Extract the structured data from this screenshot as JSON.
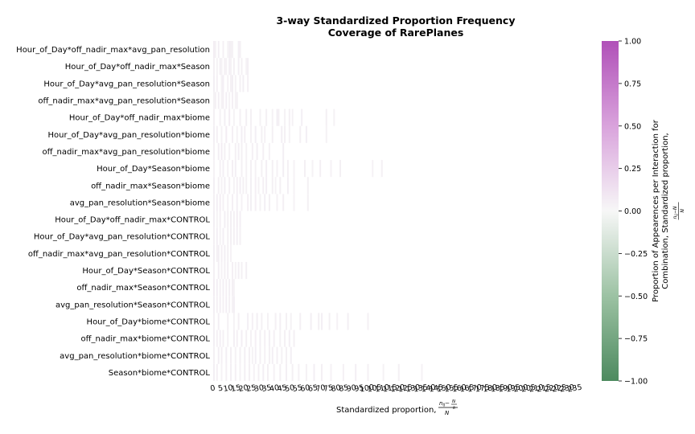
{
  "chart_data": {
    "type": "heatmap",
    "title": [
      "3-way Standardized Proportion Frequency",
      "Coverage of RarePlanes"
    ],
    "xlabel": "Standardized proportion,",
    "xlabel_formula": {
      "num_left": "n",
      "num_sub": "ij",
      "num_mid": "−",
      "frac_num": "N",
      "frac_den": "k",
      "den": "N"
    },
    "rows": [
      "Hour_of_Day*off_nadir_max*avg_pan_resolution",
      "Hour_of_Day*off_nadir_max*Season",
      "Hour_of_Day*avg_pan_resolution*Season",
      "off_nadir_max*avg_pan_resolution*Season",
      "Hour_of_Day*off_nadir_max*biome",
      "Hour_of_Day*avg_pan_resolution*biome",
      "off_nadir_max*avg_pan_resolution*biome",
      "Hour_of_Day*Season*biome",
      "off_nadir_max*Season*biome",
      "avg_pan_resolution*Season*biome",
      "Hour_of_Day*off_nadir_max*CONTROL",
      "Hour_of_Day*avg_pan_resolution*CONTROL",
      "off_nadir_max*avg_pan_resolution*CONTROL",
      "Hour_of_Day*Season*CONTROL",
      "off_nadir_max*Season*CONTROL",
      "avg_pan_resolution*Season*CONTROL",
      "Hour_of_Day*biome*CONTROL",
      "off_nadir_max*biome*CONTROL",
      "avg_pan_resolution*biome*CONTROL",
      "Season*biome*CONTROL"
    ],
    "x_tick_labels": [
      "0",
      "5",
      "10",
      "15",
      "20",
      "25",
      "30",
      "35",
      "40",
      "45",
      "50",
      "55",
      "60",
      "65",
      "70",
      "75",
      "80",
      "85",
      "90",
      "95",
      "100",
      "105",
      "110",
      "115",
      "120",
      "125",
      "130",
      "135",
      "140",
      "145",
      "150",
      "155",
      "160",
      "165",
      "170",
      "175",
      "180",
      "185",
      "190",
      "195",
      "200",
      "205",
      "210",
      "215",
      "220",
      "225",
      "230",
      "235"
    ],
    "x_range": [
      0,
      235
    ],
    "cells": [
      [
        [
          0,
          0.06
        ],
        [
          1,
          0.03
        ],
        [
          3,
          0.05
        ],
        [
          6,
          0.04
        ],
        [
          9,
          0.02
        ],
        [
          10,
          0.05
        ],
        [
          11,
          0.04
        ],
        [
          12,
          0.03
        ],
        [
          16,
          0.05
        ],
        [
          17,
          0.04
        ]
      ],
      [
        [
          0,
          0.04
        ],
        [
          2,
          0.03
        ],
        [
          4,
          0.05
        ],
        [
          5,
          0.03
        ],
        [
          7,
          0.04
        ],
        [
          8,
          0.03
        ],
        [
          10,
          0.05
        ],
        [
          11,
          0.03
        ],
        [
          13,
          0.04
        ],
        [
          16,
          0.05
        ],
        [
          18,
          0.04
        ],
        [
          21,
          0.03
        ],
        [
          22,
          0.05
        ]
      ],
      [
        [
          0,
          0.05
        ],
        [
          2,
          0.04
        ],
        [
          5,
          0.03
        ],
        [
          6,
          0.05
        ],
        [
          9,
          0.03
        ],
        [
          11,
          0.04
        ],
        [
          12,
          0.05
        ],
        [
          14,
          0.03
        ],
        [
          17,
          0.04
        ],
        [
          19,
          0.05
        ],
        [
          22,
          0.04
        ]
      ],
      [
        [
          0,
          0.03
        ],
        [
          1,
          0.04
        ],
        [
          3,
          0.05
        ],
        [
          5,
          0.03
        ],
        [
          6,
          0.04
        ],
        [
          8,
          0.05
        ],
        [
          10,
          0.03
        ],
        [
          12,
          0.04
        ],
        [
          14,
          0.03
        ],
        [
          15,
          0.04
        ]
      ],
      [
        [
          0,
          0.04
        ],
        [
          4,
          0.03
        ],
        [
          7,
          0.05
        ],
        [
          10,
          0.06
        ],
        [
          13,
          0.03
        ],
        [
          17,
          0.04
        ],
        [
          21,
          0.05
        ],
        [
          24,
          0.04
        ],
        [
          30,
          0.03
        ],
        [
          34,
          0.04
        ],
        [
          38,
          0.03
        ],
        [
          41,
          0.05
        ],
        [
          42,
          0.04
        ],
        [
          46,
          0.03
        ],
        [
          49,
          0.04
        ],
        [
          51,
          0.03
        ],
        [
          57,
          0.05
        ],
        [
          73,
          0.04
        ],
        [
          78,
          0.03
        ]
      ],
      [
        [
          0,
          0.05
        ],
        [
          2,
          0.04
        ],
        [
          5,
          0.03
        ],
        [
          8,
          0.06
        ],
        [
          12,
          0.04
        ],
        [
          15,
          0.03
        ],
        [
          18,
          0.05
        ],
        [
          20,
          0.04
        ],
        [
          24,
          0.03
        ],
        [
          27,
          0.05
        ],
        [
          31,
          0.04
        ],
        [
          33,
          0.03
        ],
        [
          38,
          0.04
        ],
        [
          44,
          0.05
        ],
        [
          46,
          0.04
        ],
        [
          49,
          0.03
        ],
        [
          56,
          0.04
        ],
        [
          60,
          0.05
        ],
        [
          73,
          0.03
        ]
      ],
      [
        [
          0,
          0.04
        ],
        [
          3,
          0.05
        ],
        [
          5,
          0.06
        ],
        [
          7,
          0.04
        ],
        [
          10,
          0.03
        ],
        [
          14,
          0.04
        ],
        [
          16,
          0.05
        ],
        [
          18,
          0.04
        ],
        [
          21,
          0.03
        ],
        [
          25,
          0.04
        ],
        [
          28,
          0.05
        ],
        [
          32,
          0.04
        ],
        [
          36,
          0.03
        ],
        [
          45,
          0.05
        ]
      ],
      [
        [
          0,
          0.03
        ],
        [
          4,
          0.04
        ],
        [
          6,
          0.05
        ],
        [
          9,
          0.03
        ],
        [
          12,
          0.04
        ],
        [
          14,
          0.05
        ],
        [
          18,
          0.04
        ],
        [
          21,
          0.03
        ],
        [
          24,
          0.04
        ],
        [
          27,
          0.03
        ],
        [
          31,
          0.04
        ],
        [
          34,
          0.05
        ],
        [
          38,
          0.04
        ],
        [
          41,
          0.03
        ],
        [
          45,
          0.05
        ],
        [
          48,
          0.04
        ],
        [
          52,
          0.03
        ],
        [
          59,
          0.04
        ],
        [
          64,
          0.03
        ],
        [
          69,
          0.04
        ],
        [
          76,
          0.03
        ],
        [
          82,
          0.04
        ],
        [
          103,
          0.03
        ],
        [
          109,
          0.04
        ]
      ],
      [
        [
          0,
          0.05
        ],
        [
          3,
          0.04
        ],
        [
          5,
          0.03
        ],
        [
          7,
          0.05
        ],
        [
          10,
          0.04
        ],
        [
          13,
          0.03
        ],
        [
          15,
          0.04
        ],
        [
          17,
          0.05
        ],
        [
          19,
          0.04
        ],
        [
          21,
          0.03
        ],
        [
          24,
          0.05
        ],
        [
          27,
          0.04
        ],
        [
          29,
          0.03
        ],
        [
          32,
          0.04
        ],
        [
          34,
          0.05
        ],
        [
          38,
          0.04
        ],
        [
          40,
          0.03
        ],
        [
          43,
          0.04
        ],
        [
          48,
          0.05
        ],
        [
          52,
          0.03
        ],
        [
          61,
          0.04
        ]
      ],
      [
        [
          0,
          0.04
        ],
        [
          2,
          0.05
        ],
        [
          4,
          0.06
        ],
        [
          6,
          0.04
        ],
        [
          9,
          0.03
        ],
        [
          12,
          0.04
        ],
        [
          15,
          0.05
        ],
        [
          18,
          0.03
        ],
        [
          22,
          0.04
        ],
        [
          24,
          0.05
        ],
        [
          27,
          0.04
        ],
        [
          30,
          0.03
        ],
        [
          33,
          0.05
        ],
        [
          36,
          0.04
        ],
        [
          41,
          0.03
        ],
        [
          45,
          0.04
        ],
        [
          52,
          0.03
        ],
        [
          61,
          0.04
        ]
      ],
      [
        [
          0,
          0.05
        ],
        [
          2,
          0.03
        ],
        [
          4,
          0.04
        ],
        [
          7,
          0.05
        ],
        [
          9,
          0.04
        ],
        [
          11,
          0.05
        ],
        [
          13,
          0.04
        ],
        [
          15,
          0.06
        ],
        [
          17,
          0.05
        ]
      ],
      [
        [
          0,
          0.04
        ],
        [
          2,
          0.05
        ],
        [
          4,
          0.03
        ],
        [
          6,
          0.05
        ],
        [
          9,
          0.04
        ],
        [
          11,
          0.05
        ],
        [
          13,
          0.04
        ],
        [
          15,
          0.05
        ],
        [
          17,
          0.04
        ]
      ],
      [
        [
          0,
          0.05
        ],
        [
          2,
          0.04
        ],
        [
          3,
          0.05
        ],
        [
          5,
          0.04
        ],
        [
          7,
          0.05
        ],
        [
          9,
          0.04
        ],
        [
          11,
          0.03
        ]
      ],
      [
        [
          0,
          0.04
        ],
        [
          3,
          0.05
        ],
        [
          5,
          0.03
        ],
        [
          7,
          0.04
        ],
        [
          9,
          0.05
        ],
        [
          12,
          0.04
        ],
        [
          14,
          0.03
        ],
        [
          16,
          0.05
        ],
        [
          18,
          0.04
        ],
        [
          21,
          0.05
        ]
      ],
      [
        [
          0,
          0.06
        ],
        [
          2,
          0.05
        ],
        [
          4,
          0.04
        ],
        [
          6,
          0.05
        ],
        [
          8,
          0.04
        ],
        [
          10,
          0.05
        ],
        [
          12,
          0.04
        ],
        [
          13,
          0.03
        ]
      ],
      [
        [
          0,
          0.05
        ],
        [
          2,
          0.04
        ],
        [
          4,
          0.05
        ],
        [
          6,
          0.04
        ],
        [
          8,
          0.05
        ],
        [
          10,
          0.04
        ],
        [
          12,
          0.03
        ],
        [
          13,
          0.05
        ]
      ],
      [
        [
          0,
          0.04
        ],
        [
          3,
          0.05
        ],
        [
          9,
          0.04
        ],
        [
          13,
          0.03
        ],
        [
          16,
          0.04
        ],
        [
          22,
          0.05
        ],
        [
          25,
          0.04
        ],
        [
          28,
          0.05
        ],
        [
          31,
          0.04
        ],
        [
          35,
          0.03
        ],
        [
          40,
          0.04
        ],
        [
          43,
          0.05
        ],
        [
          47,
          0.04
        ],
        [
          50,
          0.03
        ],
        [
          56,
          0.04
        ],
        [
          63,
          0.05
        ],
        [
          68,
          0.04
        ],
        [
          70,
          0.05
        ],
        [
          75,
          0.04
        ],
        [
          80,
          0.03
        ],
        [
          87,
          0.05
        ],
        [
          100,
          0.04
        ]
      ],
      [
        [
          0,
          0.05
        ],
        [
          2,
          0.04
        ],
        [
          4,
          0.05
        ],
        [
          6,
          0.04
        ],
        [
          9,
          0.03
        ],
        [
          13,
          0.05
        ],
        [
          15,
          0.04
        ],
        [
          18,
          0.05
        ],
        [
          21,
          0.04
        ],
        [
          24,
          0.03
        ],
        [
          27,
          0.04
        ],
        [
          30,
          0.05
        ],
        [
          33,
          0.04
        ],
        [
          36,
          0.05
        ],
        [
          39,
          0.04
        ],
        [
          43,
          0.03
        ],
        [
          46,
          0.04
        ],
        [
          49,
          0.05
        ],
        [
          52,
          0.04
        ]
      ],
      [
        [
          0,
          0.04
        ],
        [
          3,
          0.05
        ],
        [
          5,
          0.04
        ],
        [
          8,
          0.05
        ],
        [
          11,
          0.04
        ],
        [
          14,
          0.03
        ],
        [
          17,
          0.04
        ],
        [
          20,
          0.05
        ],
        [
          23,
          0.04
        ],
        [
          25,
          0.03
        ],
        [
          27,
          0.05
        ],
        [
          30,
          0.04
        ],
        [
          33,
          0.03
        ],
        [
          36,
          0.04
        ],
        [
          38,
          0.05
        ],
        [
          41,
          0.04
        ],
        [
          44,
          0.03
        ],
        [
          47,
          0.04
        ],
        [
          50,
          0.05
        ]
      ],
      [
        [
          0,
          0.05
        ],
        [
          2,
          0.04
        ],
        [
          5,
          0.03
        ],
        [
          8,
          0.04
        ],
        [
          11,
          0.05
        ],
        [
          14,
          0.04
        ],
        [
          17,
          0.03
        ],
        [
          20,
          0.05
        ],
        [
          23,
          0.04
        ],
        [
          26,
          0.03
        ],
        [
          29,
          0.04
        ],
        [
          32,
          0.05
        ],
        [
          35,
          0.04
        ],
        [
          39,
          0.03
        ],
        [
          43,
          0.04
        ],
        [
          47,
          0.05
        ],
        [
          51,
          0.04
        ],
        [
          55,
          0.03
        ],
        [
          60,
          0.04
        ],
        [
          65,
          0.05
        ],
        [
          70,
          0.04
        ],
        [
          76,
          0.03
        ],
        [
          84,
          0.04
        ],
        [
          92,
          0.05
        ],
        [
          100,
          0.04
        ],
        [
          110,
          0.03
        ],
        [
          120,
          0.04
        ],
        [
          135,
          0.03
        ]
      ]
    ],
    "colorbar": {
      "label_line1": "Proportion of Appearences per Interaction for",
      "label_line2": "Combination, Standardized proportion,",
      "ticks": [
        "1.00",
        "0.75",
        "0.50",
        "0.25",
        "0.00",
        "−0.25",
        "−0.50",
        "−0.75",
        "−1.00"
      ],
      "tick_values": [
        1.0,
        0.75,
        0.5,
        0.25,
        0.0,
        -0.25,
        -0.5,
        -0.75,
        -1.0
      ],
      "vmin": -1.0,
      "vmax": 1.0,
      "colors": [
        "#4d8a5f",
        "#f7f7f7",
        "#b050b8"
      ]
    },
    "grid": false,
    "legend": "colorbar-right"
  }
}
